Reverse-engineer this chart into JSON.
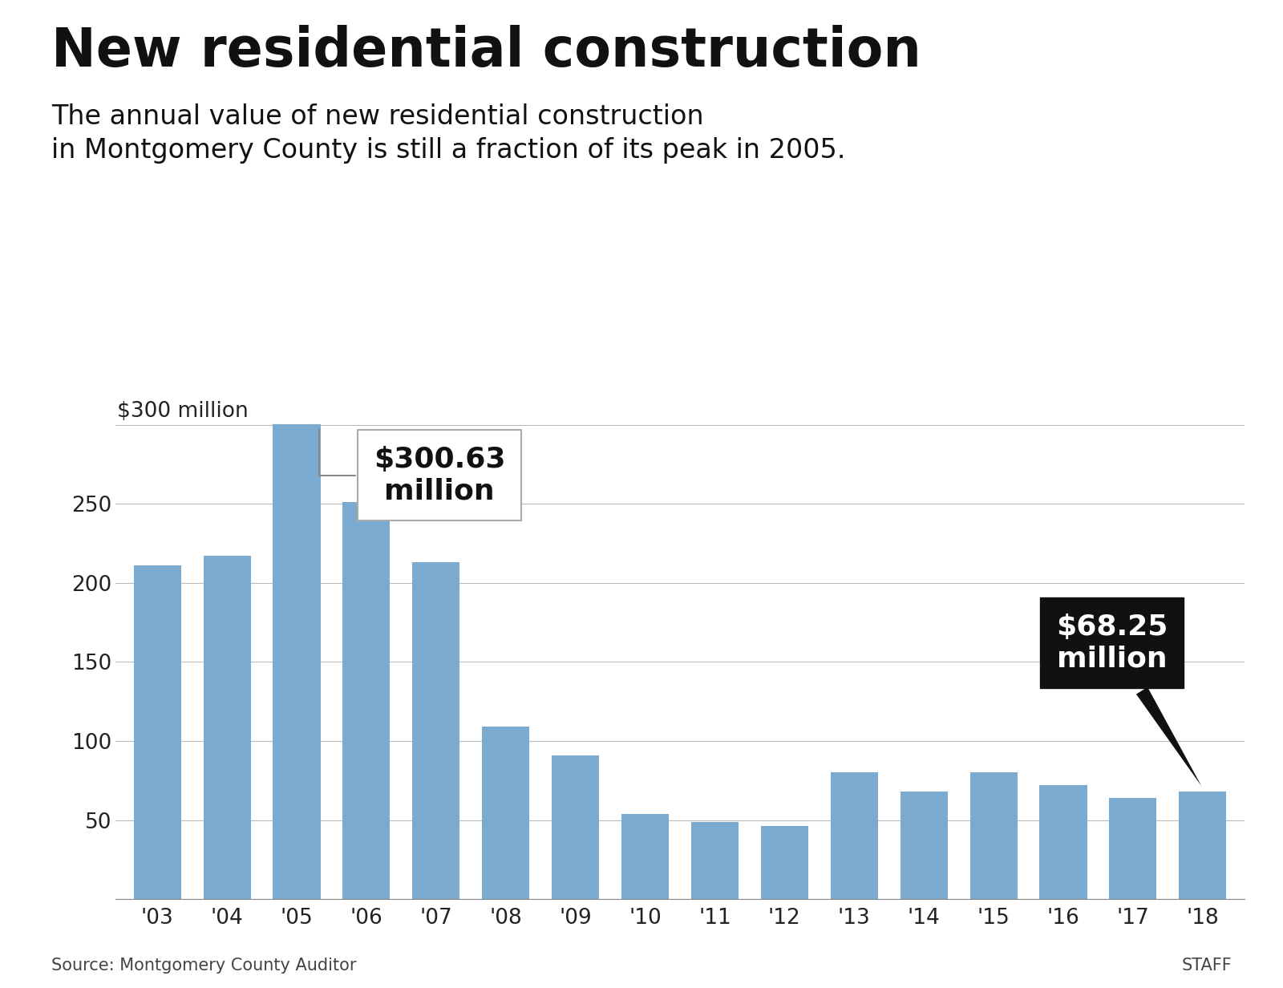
{
  "title": "New residential construction",
  "subtitle": "The annual value of new residential construction\nin Montgomery County is still a fraction of its peak in 2005.",
  "years": [
    "'03",
    "'04",
    "'05",
    "'06",
    "'07",
    "'08",
    "'09",
    "'10",
    "'11",
    "'12",
    "'13",
    "'14",
    "'15",
    "'16",
    "'17",
    "'18"
  ],
  "values": [
    211,
    217,
    300.63,
    251,
    213,
    109,
    91,
    54,
    49,
    46,
    80,
    68,
    80,
    72,
    64,
    68.25
  ],
  "bar_color": "#7aaacf",
  "yticks": [
    0,
    50,
    100,
    150,
    200,
    250,
    300
  ],
  "ylim": [
    0,
    325
  ],
  "peak_label": "$300.63\nmillion",
  "peak_year_idx": 2,
  "last_label": "$68.25\nmillion",
  "last_year_idx": 15,
  "source": "Source: Montgomery County Auditor",
  "staff": "STAFF",
  "bg_color": "#ffffff",
  "title_fontsize": 48,
  "subtitle_fontsize": 24,
  "axis_fontsize": 19,
  "annotation_fontsize": 26
}
